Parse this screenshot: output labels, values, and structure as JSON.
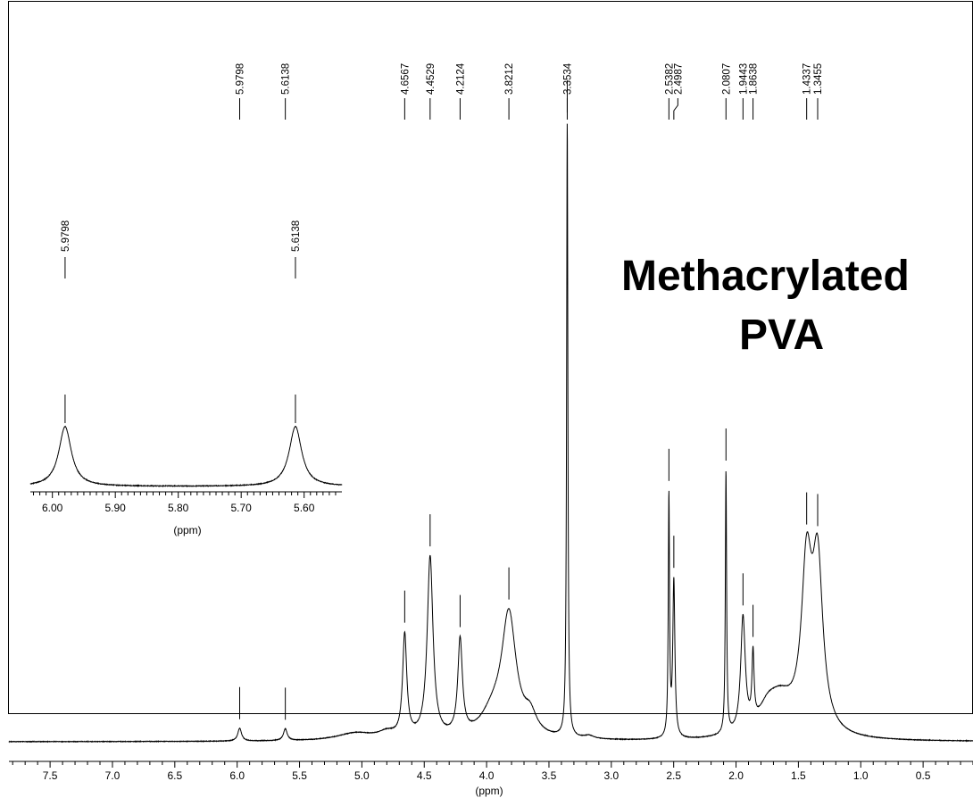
{
  "title": {
    "line1": "Methacrylated",
    "line2": "PVA"
  },
  "chart_data": [
    {
      "type": "line",
      "name_role": "main-spectrum",
      "xlabel": "(ppm)",
      "ylabel": "",
      "x_reversed": true,
      "xlim": [
        7.83,
        0.1
      ],
      "x_ticks": [
        7.5,
        7.0,
        6.5,
        6.0,
        5.5,
        5.0,
        4.5,
        4.0,
        3.5,
        3.0,
        2.5,
        2.0,
        1.5,
        1.0,
        0.5
      ],
      "x_tick_labels": [
        "7.5",
        "7.0",
        "6.5",
        "6.0",
        "5.5",
        "5.0",
        "4.5",
        "4.0",
        "3.5",
        "3.0",
        "2.5",
        "2.0",
        "1.5",
        "1.0",
        "0.5"
      ],
      "peak_labels": [
        "5.9798",
        "5.6138",
        "4.6567",
        "4.4529",
        "4.2124",
        "3.8212",
        "3.3534",
        "2.5382",
        "2.4987",
        "2.0807",
        "1.9443",
        "1.8638",
        "1.4337",
        "1.3455"
      ],
      "peaks": [
        {
          "ppm": 5.9798,
          "intensity": 0.021,
          "width": 0.018
        },
        {
          "ppm": 5.6138,
          "intensity": 0.019,
          "width": 0.018
        },
        {
          "ppm": 4.6567,
          "intensity": 0.166,
          "width": 0.02
        },
        {
          "ppm": 4.4529,
          "intensity": 0.294,
          "width": 0.028
        },
        {
          "ppm": 4.2124,
          "intensity": 0.154,
          "width": 0.022
        },
        {
          "ppm": 3.8212,
          "intensity": 0.195,
          "width": 0.07
        },
        {
          "ppm": 3.3534,
          "intensity": 1.0,
          "width": 0.006
        },
        {
          "ppm": 2.5382,
          "intensity": 0.39,
          "width": 0.006
        },
        {
          "ppm": 2.4987,
          "intensity": 0.255,
          "width": 0.01
        },
        {
          "ppm": 2.0807,
          "intensity": 0.427,
          "width": 0.006
        },
        {
          "ppm": 1.9443,
          "intensity": 0.185,
          "width": 0.022
        },
        {
          "ppm": 1.8638,
          "intensity": 0.11,
          "width": 0.01
        },
        {
          "ppm": 1.4337,
          "intensity": 0.255,
          "width": 0.05
        },
        {
          "ppm": 1.3455,
          "intensity": 0.262,
          "width": 0.05
        }
      ],
      "broad_features": [
        {
          "ppm": 3.65,
          "intensity": 0.03,
          "width": 0.06
        },
        {
          "ppm": 3.95,
          "intensity": 0.035,
          "width": 0.12
        },
        {
          "ppm": 5.05,
          "intensity": 0.012,
          "width": 0.18
        },
        {
          "ppm": 4.8,
          "intensity": 0.01,
          "width": 0.08
        },
        {
          "ppm": 1.65,
          "intensity": 0.06,
          "width": 0.14
        },
        {
          "ppm": 1.75,
          "intensity": 0.025,
          "width": 0.08
        },
        {
          "ppm": 3.18,
          "intensity": 0.005,
          "width": 0.05
        }
      ]
    },
    {
      "type": "line",
      "name_role": "inset-expansion",
      "xlabel": "(ppm)",
      "ylabel": "",
      "x_reversed": true,
      "xlim": [
        6.035,
        5.54
      ],
      "x_ticks": [
        6.0,
        5.9,
        5.8,
        5.7,
        5.6
      ],
      "x_tick_labels": [
        "6.00",
        "5.90",
        "5.80",
        "5.70",
        "5.60"
      ],
      "peak_labels": [
        "5.9798",
        "5.6138"
      ],
      "peaks": [
        {
          "ppm": 5.9798,
          "intensity": 1.0,
          "width": 0.012
        },
        {
          "ppm": 5.6138,
          "intensity": 1.0,
          "width": 0.012
        }
      ]
    }
  ]
}
